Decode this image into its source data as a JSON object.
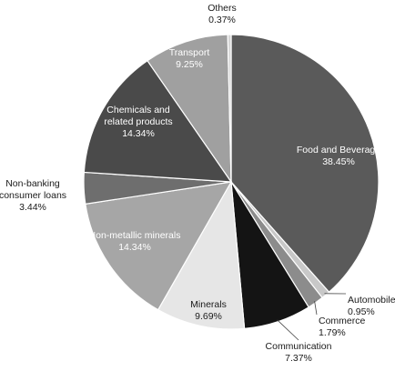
{
  "chart_data": {
    "type": "pie",
    "title": "",
    "slices": [
      {
        "label": "Food and Beverage",
        "value": 38.45,
        "value_text": "38.45%",
        "color": "#5a5a5a"
      },
      {
        "label": "Automobile",
        "value": 0.95,
        "value_text": "0.95%",
        "color": "#c8c8c8"
      },
      {
        "label": "Commerce",
        "value": 1.79,
        "value_text": "1.79%",
        "color": "#8c8c8c"
      },
      {
        "label": "Communication",
        "value": 7.37,
        "value_text": "7.37%",
        "color": "#141414"
      },
      {
        "label": "Minerals",
        "value": 9.69,
        "value_text": "9.69%",
        "color": "#e6e6e6"
      },
      {
        "label": "Non-metallic minerals",
        "value": 14.34,
        "value_text": "14.34%",
        "color": "#a6a6a6"
      },
      {
        "label": "Non-banking consumer loans",
        "value": 3.44,
        "value_text": "3.44%",
        "color": "#6e6e6e"
      },
      {
        "label": "Chemicals and related products",
        "value": 14.34,
        "value_text": "14.34%",
        "color": "#4a4a4a"
      },
      {
        "label": "Transport",
        "value": 9.25,
        "value_text": "9.25%",
        "color": "#a0a0a0"
      },
      {
        "label": "Others",
        "value": 0.37,
        "value_text": "0.37%",
        "color": "#d6d6d6"
      }
    ],
    "start_angle_deg": 0,
    "direction": "clockwise",
    "legend": "none"
  }
}
